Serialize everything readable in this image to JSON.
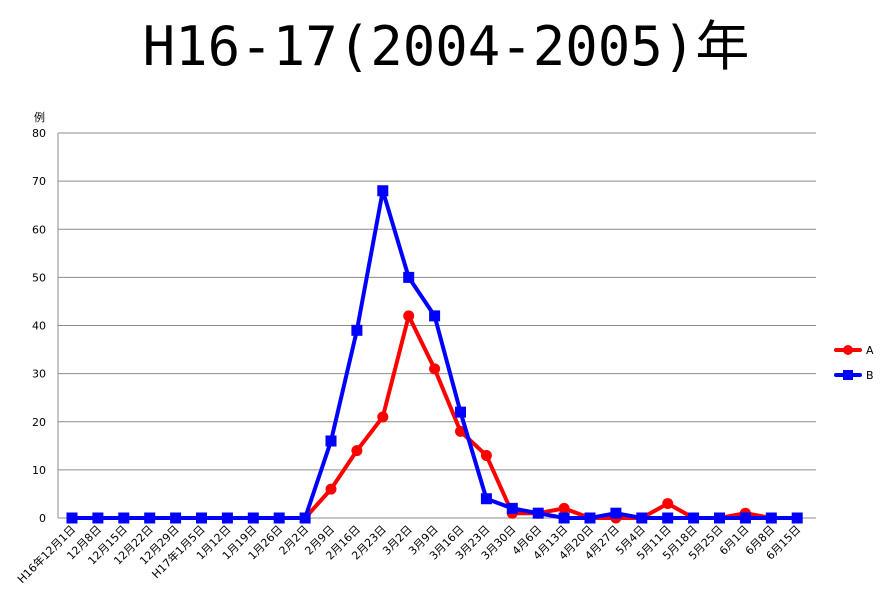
{
  "chart_data": {
    "type": "line",
    "title": "H16-17(2004-2005)年",
    "ylabel": "例",
    "xlabel": "",
    "ylim": [
      0,
      80
    ],
    "yticks": [
      0,
      10,
      20,
      30,
      40,
      50,
      60,
      70,
      80
    ],
    "grid": true,
    "legend_position": "right",
    "categories": [
      "H16年12月1日",
      "12月8日",
      "12月15日",
      "12月22日",
      "12月29日",
      "H17年1月5日",
      "1月12日",
      "1月19日",
      "1月26日",
      "2月2日",
      "2月9日",
      "2月16日",
      "2月23日",
      "3月2日",
      "3月9日",
      "3月16日",
      "3月23日",
      "3月30日",
      "4月6日",
      "4月13日",
      "4月20日",
      "4月27日",
      "5月4日",
      "5月11日",
      "5月18日",
      "5月25日",
      "6月1日",
      "6月8日",
      "6月15日"
    ],
    "series": [
      {
        "name": "A",
        "color": "#ff0000",
        "marker": "circle",
        "values": [
          0,
          0,
          0,
          0,
          0,
          0,
          0,
          0,
          0,
          0,
          6,
          14,
          21,
          42,
          31,
          18,
          13,
          1,
          1,
          2,
          0,
          0,
          0,
          3,
          0,
          0,
          1,
          0,
          0
        ]
      },
      {
        "name": "B",
        "color": "#0000ff",
        "marker": "square",
        "values": [
          0,
          0,
          0,
          0,
          0,
          0,
          0,
          0,
          0,
          0,
          16,
          39,
          68,
          50,
          42,
          22,
          4,
          2,
          1,
          0,
          0,
          1,
          0,
          0,
          0,
          0,
          0,
          0,
          0
        ]
      }
    ]
  }
}
